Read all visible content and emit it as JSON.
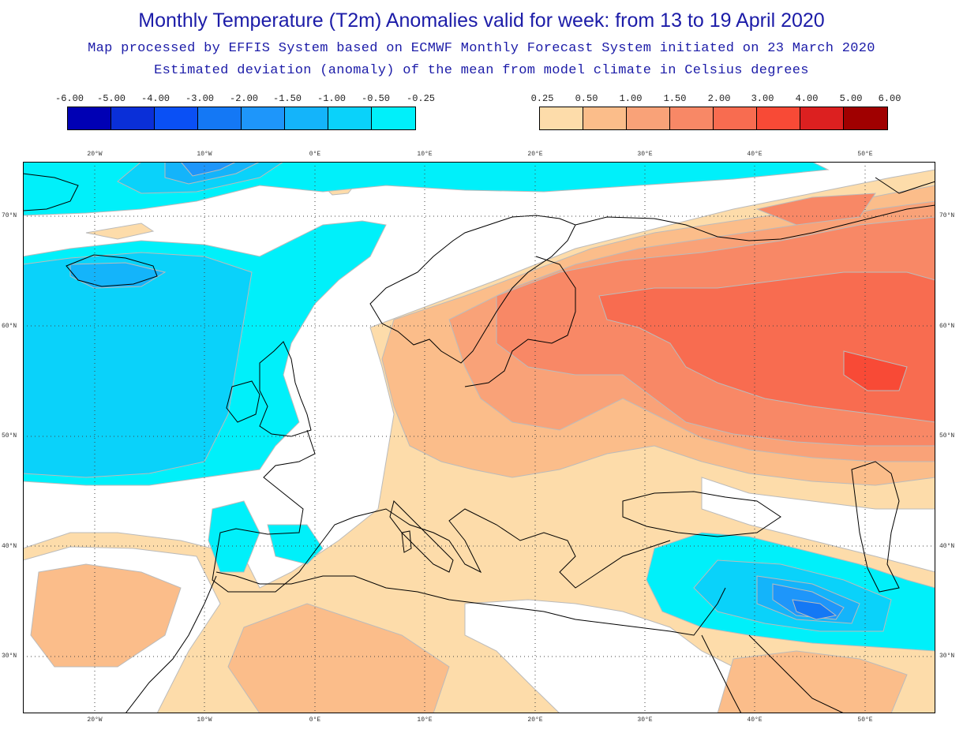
{
  "header": {
    "title": "Monthly Temperature (T2m) Anomalies valid for week: from 13 to 19 April 2020",
    "subtitle1": "Map processed by EFFIS System based on ECMWF Monthly Forecast System initiated on 23 March 2020",
    "subtitle2": "Estimated deviation (anomaly) of the mean from model climate in Celsius degrees"
  },
  "legend": {
    "negative": {
      "labels": [
        "-6.00",
        "-5.00",
        "-4.00",
        "-3.00",
        "-2.00",
        "-1.50",
        "-1.00",
        "-0.50",
        "-0.25"
      ],
      "colors": [
        "#0000b4",
        "#0a2fd8",
        "#0a50f5",
        "#1478f5",
        "#1e96fa",
        "#14b4fa",
        "#0ad2fa",
        "#00f0fa"
      ]
    },
    "positive": {
      "labels": [
        "0.25",
        "0.50",
        "1.00",
        "1.50",
        "2.00",
        "3.00",
        "4.00",
        "5.00",
        "6.00"
      ],
      "colors": [
        "#fddcaa",
        "#fbbd8a",
        "#f9a278",
        "#f88866",
        "#f86c50",
        "#f84a36",
        "#dc2020",
        "#a00000"
      ]
    }
  },
  "axes": {
    "lon_labels": [
      "20°W",
      "10°W",
      "0°E",
      "10°E",
      "20°E",
      "30°E",
      "40°E",
      "50°E"
    ],
    "lat_labels": [
      "70°N",
      "60°N",
      "50°N",
      "40°N",
      "30°N"
    ]
  },
  "colors": {
    "ocean_neutral": "#ffffff",
    "coast_line": "#000000",
    "grid_line": "#444444",
    "contour_line": "#bbbbbb"
  }
}
